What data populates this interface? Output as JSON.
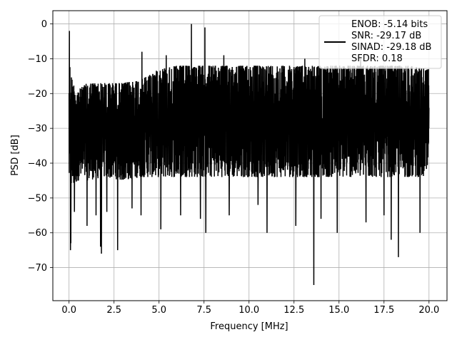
{
  "chart_data": {
    "type": "line",
    "title": "",
    "xlabel": "Frequency [MHz]",
    "ylabel": "PSD [dB]",
    "xlim": [
      -0.9,
      21.0
    ],
    "ylim": [
      -79.5,
      3.8
    ],
    "xticks": [
      0.0,
      2.5,
      5.0,
      7.5,
      10.0,
      12.5,
      15.0,
      17.5,
      20.0
    ],
    "xtick_labels": [
      "0.0",
      "2.5",
      "5.0",
      "7.5",
      "10.0",
      "12.5",
      "15.0",
      "17.5",
      "20.0"
    ],
    "yticks": [
      0,
      -10,
      -20,
      -30,
      -40,
      -50,
      -60,
      -70
    ],
    "ytick_labels": [
      "0",
      "−10",
      "−20",
      "−30",
      "−40",
      "−50",
      "−60",
      "−70"
    ],
    "grid": true,
    "legend_position": "top-right",
    "legend": {
      "swatch_color": "#000000",
      "lines": [
        "ENOB: -5.14 bits",
        "SNR: -29.17 dB",
        "SINAD: -29.18 dB",
        "SFDR: 0.18"
      ]
    },
    "series": [
      {
        "color": "#000000",
        "x_range": [
          0.0,
          20.0
        ],
        "envelope": {
          "x": [
            0.0,
            0.05,
            0.2,
            0.5,
            1.0,
            2.0,
            3.0,
            4.0,
            5.0,
            6.0,
            7.0,
            8.0,
            9.0,
            10.0,
            11.0,
            12.0,
            13.0,
            14.0,
            15.0,
            16.0,
            17.0,
            18.0,
            19.0,
            20.0
          ],
          "upper": [
            -13,
            -12,
            -17,
            -19,
            -17,
            -17,
            -17,
            -16,
            -13,
            -12,
            -12,
            -12,
            -12,
            -12,
            -12,
            -12,
            -12,
            -12,
            -12,
            -12,
            -12,
            -12,
            -12,
            -13
          ],
          "lower": [
            -45,
            -48,
            -47,
            -45,
            -45,
            -44,
            -45,
            -44,
            -44,
            -44,
            -44,
            -44,
            -44,
            -44,
            -44,
            -44,
            -44,
            -44,
            -44,
            -44,
            -44,
            -44,
            -44,
            -44
          ]
        },
        "peaks": [
          {
            "x": 0.02,
            "y": -2
          },
          {
            "x": 4.05,
            "y": -8
          },
          {
            "x": 5.4,
            "y": -9
          },
          {
            "x": 6.8,
            "y": 0
          },
          {
            "x": 7.55,
            "y": -1
          },
          {
            "x": 8.6,
            "y": -9
          },
          {
            "x": 13.1,
            "y": -10
          },
          {
            "x": 16.2,
            "y": -10
          }
        ],
        "dips": [
          {
            "x": 0.08,
            "y": -65
          },
          {
            "x": 0.1,
            "y": -63
          },
          {
            "x": 0.3,
            "y": -54
          },
          {
            "x": 1.0,
            "y": -58
          },
          {
            "x": 1.5,
            "y": -55
          },
          {
            "x": 1.8,
            "y": -66
          },
          {
            "x": 1.75,
            "y": -64
          },
          {
            "x": 2.1,
            "y": -54
          },
          {
            "x": 2.7,
            "y": -65
          },
          {
            "x": 3.5,
            "y": -53
          },
          {
            "x": 4.0,
            "y": -55
          },
          {
            "x": 5.1,
            "y": -59
          },
          {
            "x": 6.2,
            "y": -55
          },
          {
            "x": 7.3,
            "y": -56
          },
          {
            "x": 7.6,
            "y": -60
          },
          {
            "x": 8.9,
            "y": -55
          },
          {
            "x": 10.5,
            "y": -52
          },
          {
            "x": 11.0,
            "y": -60
          },
          {
            "x": 12.6,
            "y": -58
          },
          {
            "x": 13.6,
            "y": -75
          },
          {
            "x": 14.0,
            "y": -56
          },
          {
            "x": 14.9,
            "y": -60
          },
          {
            "x": 16.5,
            "y": -57
          },
          {
            "x": 17.5,
            "y": -55
          },
          {
            "x": 17.9,
            "y": -62
          },
          {
            "x": 18.3,
            "y": -67
          },
          {
            "x": 19.5,
            "y": -60
          }
        ]
      }
    ]
  }
}
